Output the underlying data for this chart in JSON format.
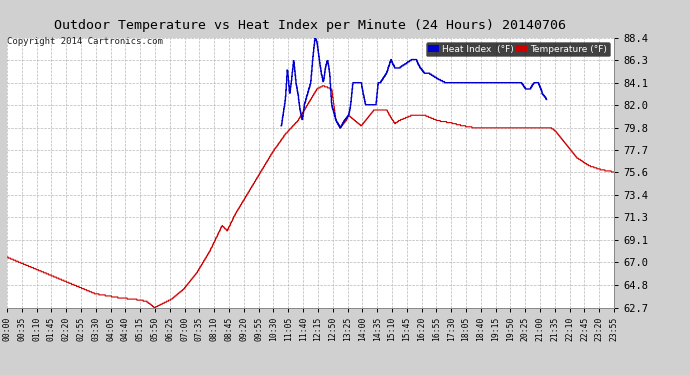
{
  "title": "Outdoor Temperature vs Heat Index per Minute (24 Hours) 20140706",
  "copyright": "Copyright 2014 Cartronics.com",
  "background_color": "#d0d0d0",
  "plot_bg_color": "#ffffff",
  "grid_color": "#b0b0b0",
  "ylim_min": 62.7,
  "ylim_max": 88.4,
  "yticks": [
    62.7,
    64.8,
    67.0,
    69.1,
    71.3,
    73.4,
    75.6,
    77.7,
    79.8,
    82.0,
    84.1,
    86.3,
    88.4
  ],
  "temp_color": "#cc0000",
  "heat_color": "#0000cc",
  "legend_heat_bg": "#0000cc",
  "legend_temp_bg": "#cc0000",
  "legend_text_color": "#ffffff",
  "legend_bg": "#111111",
  "x_tick_labels": [
    "00:00",
    "00:35",
    "01:10",
    "01:45",
    "02:20",
    "02:55",
    "03:30",
    "04:05",
    "04:40",
    "05:15",
    "05:50",
    "06:25",
    "07:00",
    "07:35",
    "08:10",
    "08:45",
    "09:20",
    "09:55",
    "10:30",
    "11:05",
    "11:40",
    "12:15",
    "12:50",
    "13:25",
    "14:00",
    "14:35",
    "15:10",
    "15:45",
    "16:20",
    "16:55",
    "17:30",
    "18:05",
    "18:40",
    "19:15",
    "19:50",
    "20:25",
    "21:00",
    "21:35",
    "22:10",
    "22:45",
    "23:20",
    "23:55"
  ]
}
